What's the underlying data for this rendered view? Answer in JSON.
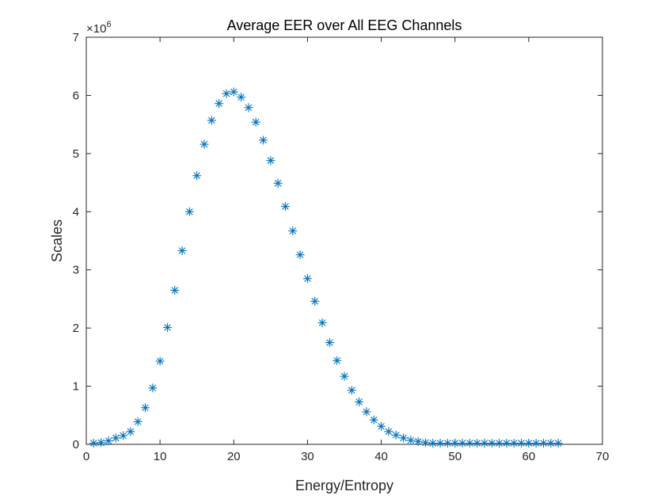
{
  "chart_data": {
    "type": "scatter",
    "title": "Average EER over All EEG Channels",
    "xlabel": "Energy/Entropy",
    "ylabel": "Scales",
    "xlim": [
      0,
      70
    ],
    "ylim": [
      0,
      7000000
    ],
    "xticks": [
      0,
      10,
      20,
      30,
      40,
      50,
      60,
      70
    ],
    "yticks": [
      0,
      1,
      2,
      3,
      4,
      5,
      6,
      7
    ],
    "y_exponent_base": "×10",
    "y_exponent_power": "6",
    "marker": "asterisk",
    "color": "#0072BD",
    "grid": false,
    "box": true,
    "x": [
      1,
      2,
      3,
      4,
      5,
      6,
      7,
      8,
      9,
      10,
      11,
      12,
      13,
      14,
      15,
      16,
      17,
      18,
      19,
      20,
      21,
      22,
      23,
      24,
      25,
      26,
      27,
      28,
      29,
      30,
      31,
      32,
      33,
      34,
      35,
      36,
      37,
      38,
      39,
      40,
      41,
      42,
      43,
      44,
      45,
      46,
      47,
      48,
      49,
      50,
      51,
      52,
      53,
      54,
      55,
      56,
      57,
      58,
      59,
      60,
      61,
      62,
      63,
      64
    ],
    "y": [
      20000,
      30000,
      60000,
      110000,
      150000,
      220000,
      390000,
      630000,
      970000,
      1430000,
      2010000,
      2650000,
      3330000,
      4000000,
      4620000,
      5160000,
      5570000,
      5860000,
      6030000,
      6060000,
      5970000,
      5790000,
      5540000,
      5230000,
      4880000,
      4490000,
      4090000,
      3670000,
      3260000,
      2850000,
      2460000,
      2090000,
      1750000,
      1440000,
      1170000,
      930000,
      730000,
      560000,
      420000,
      310000,
      220000,
      160000,
      110000,
      70000,
      50000,
      30000,
      20000,
      20000,
      20000,
      20000,
      20000,
      20000,
      20000,
      20000,
      20000,
      20000,
      20000,
      20000,
      20000,
      20000,
      20000,
      20000,
      20000,
      20000
    ]
  }
}
